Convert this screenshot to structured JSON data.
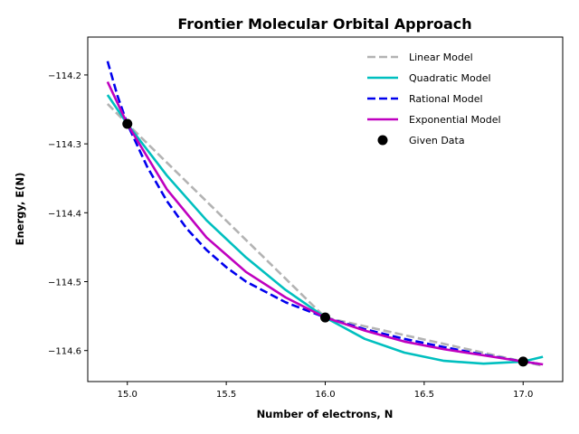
{
  "chart_data": {
    "type": "line",
    "title": "Frontier Molecular Orbital Approach",
    "xlabel": "Number of electrons, N",
    "ylabel": "Energy, E(N)",
    "xlim": [
      14.8,
      17.2
    ],
    "ylim": [
      -114.645,
      -114.145
    ],
    "xticks": [
      15.0,
      15.5,
      16.0,
      16.5,
      17.0
    ],
    "xtick_labels": [
      "15.0",
      "15.5",
      "16.0",
      "16.5",
      "17.0"
    ],
    "yticks": [
      -114.2,
      -114.3,
      -114.4,
      -114.5,
      -114.6
    ],
    "ytick_labels": [
      "−114.2",
      "−114.3",
      "−114.4",
      "−114.5",
      "−114.6"
    ],
    "legend_position": "top-right",
    "grid": false,
    "series": [
      {
        "name": "Linear Model",
        "color": "#b3b3b3",
        "dash": "dashed",
        "x": [
          14.9,
          15.0,
          16.0,
          17.0,
          17.1
        ],
        "y": [
          -114.242,
          -114.271,
          -114.552,
          -114.616,
          -114.622
        ]
      },
      {
        "name": "Quadratic Model",
        "color": "#00bfbf",
        "dash": "solid",
        "x": [
          14.9,
          15.0,
          15.2,
          15.4,
          15.6,
          15.8,
          16.0,
          16.2,
          16.4,
          16.6,
          16.8,
          17.0,
          17.1
        ],
        "y": [
          -114.229,
          -114.271,
          -114.346,
          -114.411,
          -114.465,
          -114.512,
          -114.552,
          -114.583,
          -114.603,
          -114.615,
          -114.619,
          -114.616,
          -114.609
        ]
      },
      {
        "name": "Rational Model",
        "color": "#0000ee",
        "dash": "dashed",
        "x": [
          14.9,
          14.95,
          15.0,
          15.1,
          15.2,
          15.3,
          15.4,
          15.5,
          15.6,
          15.8,
          16.0,
          16.2,
          16.4,
          16.6,
          16.8,
          17.0,
          17.1
        ],
        "y": [
          -114.18,
          -114.23,
          -114.271,
          -114.333,
          -114.383,
          -114.423,
          -114.454,
          -114.479,
          -114.5,
          -114.53,
          -114.552,
          -114.569,
          -114.583,
          -114.595,
          -114.606,
          -114.616,
          -114.62
        ]
      },
      {
        "name": "Exponential Model",
        "color": "#bf00bf",
        "dash": "solid",
        "x": [
          14.9,
          15.0,
          15.2,
          15.4,
          15.6,
          15.8,
          16.0,
          16.2,
          16.4,
          16.6,
          16.8,
          17.0,
          17.1
        ],
        "y": [
          -114.21,
          -114.271,
          -114.366,
          -114.436,
          -114.486,
          -114.523,
          -114.552,
          -114.571,
          -114.587,
          -114.598,
          -114.607,
          -114.616,
          -114.62
        ]
      }
    ],
    "given_data": {
      "name": "Given Data",
      "color": "#000000",
      "x": [
        15.0,
        16.0,
        17.0
      ],
      "y": [
        -114.271,
        -114.552,
        -114.616
      ]
    }
  }
}
